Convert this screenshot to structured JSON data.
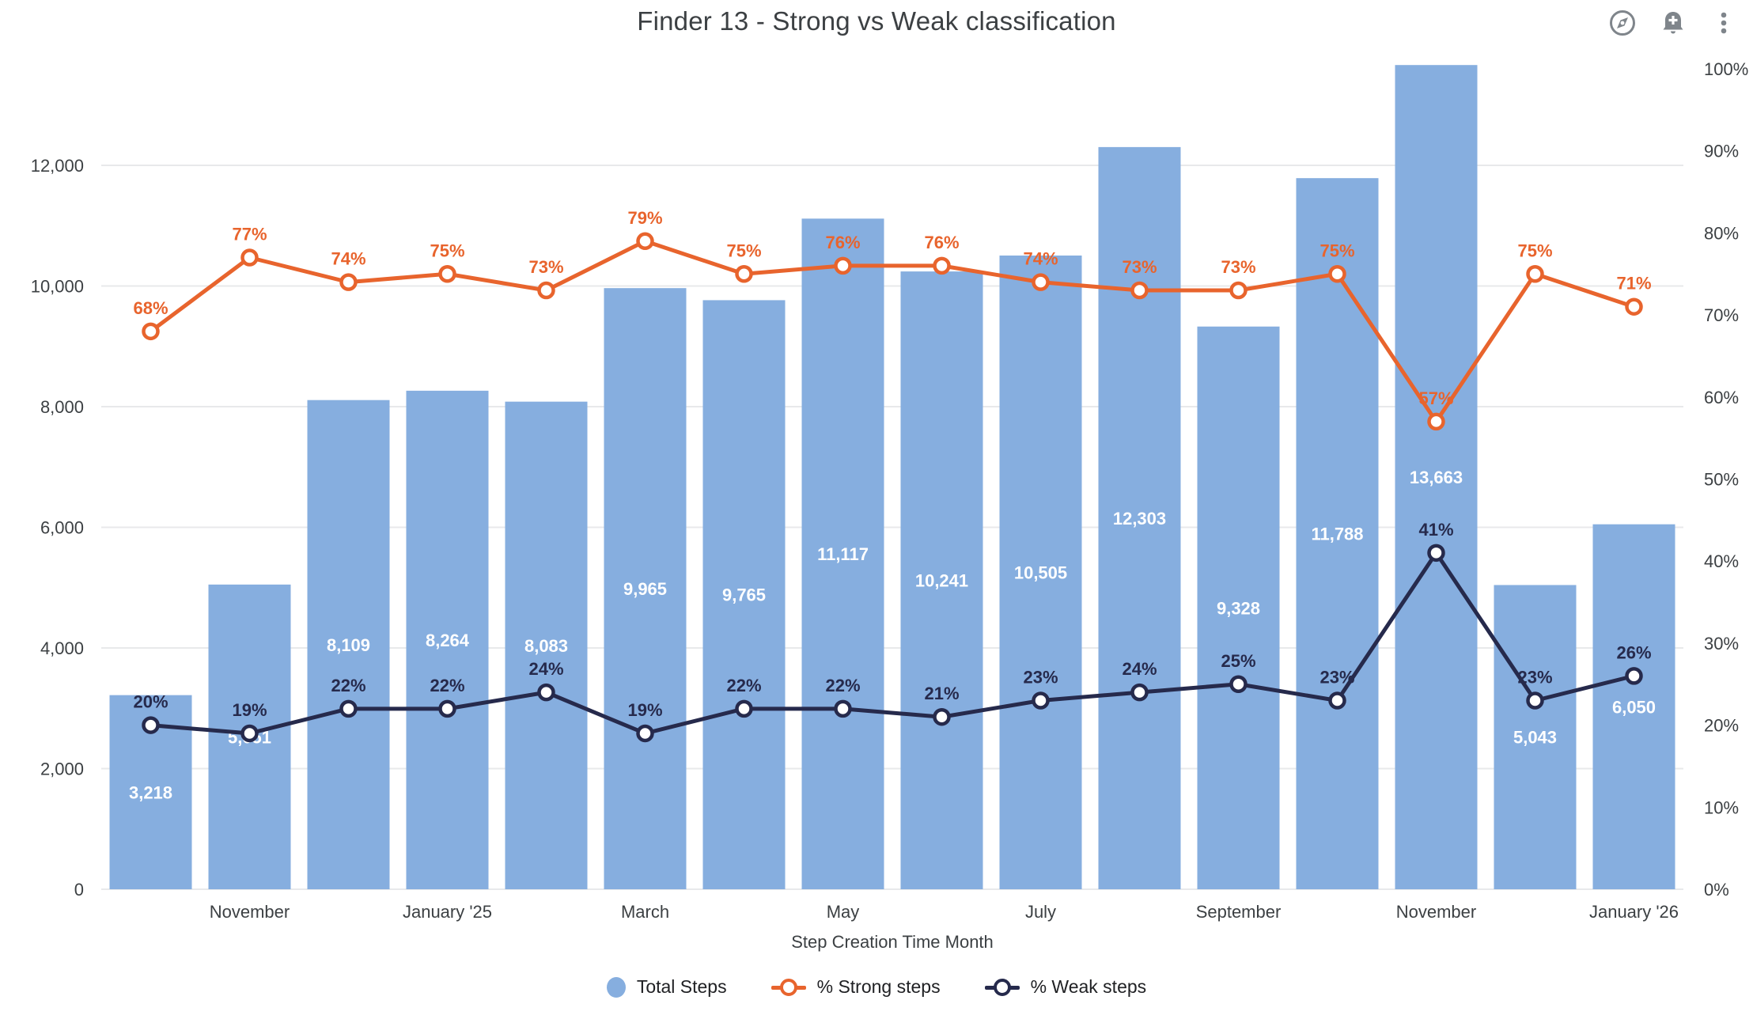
{
  "header": {
    "title": "Finder 13 - Strong vs Weak classification",
    "icons": [
      {
        "name": "compass-explore-icon"
      },
      {
        "name": "add-alert-bell-icon"
      },
      {
        "name": "more-options-kebab-icon"
      }
    ]
  },
  "chart_data": {
    "type": "combo-bar-line",
    "title": "Finder 13 - Strong vs Weak classification",
    "x_axis": {
      "title": "Step Creation Time Month",
      "num_slots": 16,
      "tick_labels": [
        "November",
        "January '25",
        "March",
        "May",
        "July",
        "September",
        "November",
        "January '26"
      ],
      "tick_slot_indices": [
        1,
        3,
        5,
        7,
        9,
        11,
        13,
        15
      ]
    },
    "left_y_axis": {
      "tick_values": [
        0,
        2000,
        4000,
        6000,
        8000,
        10000,
        12000
      ],
      "tick_labels": [
        "0",
        "2,000",
        "4,000",
        "6,000",
        "8,000",
        "10,000",
        "12,000"
      ],
      "ylim": [
        0,
        13900
      ],
      "grid": true
    },
    "right_y_axis": {
      "tick_values": [
        0,
        10,
        20,
        30,
        40,
        50,
        60,
        70,
        80,
        90,
        100
      ],
      "tick_labels": [
        "0%",
        "10%",
        "20%",
        "30%",
        "40%",
        "50%",
        "60%",
        "70%",
        "80%",
        "90%",
        "100%"
      ],
      "ylim": [
        0,
        100
      ]
    },
    "series": [
      {
        "name": "Total Steps",
        "type": "bar",
        "axis": "left",
        "color": "#86aedf",
        "label_color": "#ffffff",
        "values": [
          3218,
          5051,
          8109,
          8264,
          8083,
          9965,
          9765,
          11117,
          10241,
          10505,
          12303,
          9328,
          11788,
          13663,
          5043,
          6050
        ],
        "labels": [
          "3,218",
          "5,051",
          "8,109",
          "8,264",
          "8,083",
          "9,965",
          "9,765",
          "11,117",
          "10,241",
          "10,505",
          "12,303",
          "9,328",
          "11,788",
          "13,663",
          "5,043",
          "6,050"
        ]
      },
      {
        "name": "% Strong steps",
        "type": "line",
        "axis": "right",
        "color": "#e8642d",
        "label_color": "#e8642d",
        "values": [
          68,
          77,
          74,
          75,
          73,
          79,
          75,
          76,
          76,
          74,
          73,
          73,
          75,
          57,
          75,
          71
        ],
        "labels": [
          "68%",
          "77%",
          "74%",
          "75%",
          "73%",
          "79%",
          "75%",
          "76%",
          "76%",
          "74%",
          "73%",
          "73%",
          "75%",
          "57%",
          "75%",
          "71%"
        ]
      },
      {
        "name": "% Weak steps",
        "type": "line",
        "axis": "right",
        "color": "#262a4c",
        "label_color": "#262a4c",
        "values": [
          20,
          19,
          22,
          22,
          24,
          19,
          22,
          22,
          21,
          23,
          24,
          25,
          23,
          41,
          23,
          26
        ],
        "labels": [
          "20%",
          "19%",
          "22%",
          "22%",
          "24%",
          "19%",
          "22%",
          "22%",
          "21%",
          "23%",
          "24%",
          "25%",
          "23%",
          "41%",
          "23%",
          "26%"
        ]
      }
    ],
    "legend_position": "bottom",
    "colors": {
      "axis_text": "#3c4043",
      "grid_line": "#e8e9eb",
      "icon_gray": "#7f858b",
      "background": "#ffffff"
    }
  },
  "legend": {
    "items": [
      {
        "label": "Total Steps",
        "color": "#86aedf",
        "shape": "circle"
      },
      {
        "label": "% Strong steps",
        "color": "#e8642d",
        "shape": "line-marker"
      },
      {
        "label": "% Weak steps",
        "color": "#262a4c",
        "shape": "line-marker"
      }
    ]
  }
}
